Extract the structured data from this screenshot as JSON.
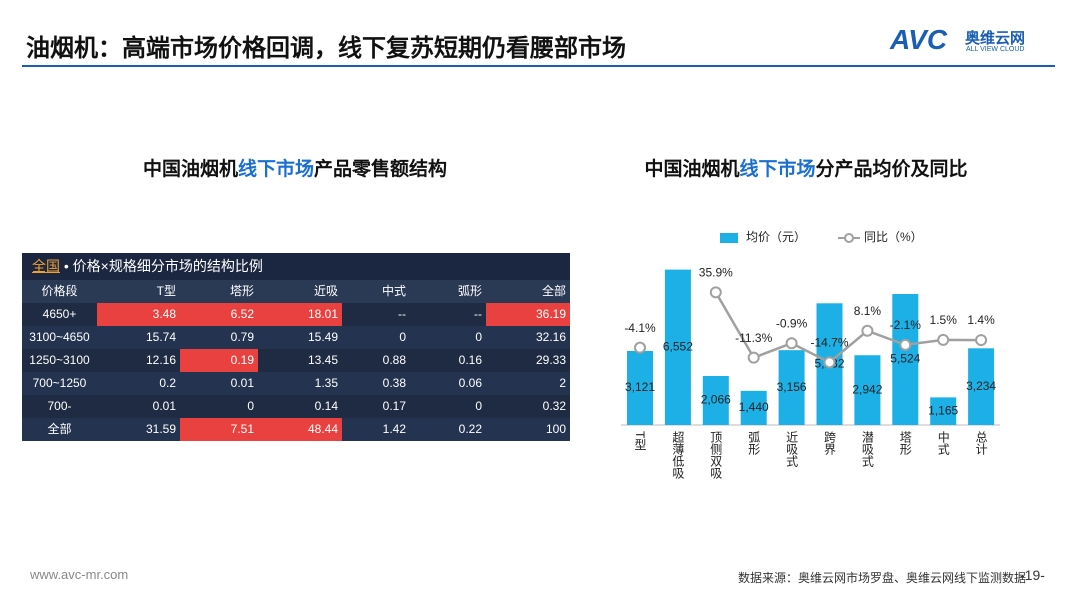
{
  "header": {
    "title": "油烟机：高端市场价格回调，线下复苏短期仍看腰部市场",
    "logo": "AVC",
    "logo_cn": "奥维云网",
    "logo_en": "ALL VIEW CLOUD"
  },
  "table": {
    "title_parts": [
      "中国油烟机",
      "线下市场",
      "产品零售额结构"
    ],
    "caption_region": "全国",
    "caption": "• 价格×规格细分市场的结构比例",
    "columns": [
      "价格段",
      "T型",
      "塔形",
      "近吸",
      "中式",
      "弧形",
      "全部"
    ],
    "rows": [
      [
        "4650+",
        "3.48",
        "6.52",
        "18.01",
        "--",
        "--",
        "36.19"
      ],
      [
        "3100~4650",
        "15.74",
        "0.79",
        "15.49",
        "0",
        "0",
        "32.16"
      ],
      [
        "1250~3100",
        "12.16",
        "0.19",
        "13.45",
        "0.88",
        "0.16",
        "29.33"
      ],
      [
        "700~1250",
        "0.2",
        "0.01",
        "1.35",
        "0.38",
        "0.06",
        "2"
      ],
      [
        "700-",
        "0.01",
        "0",
        "0.14",
        "0.17",
        "0",
        "0.32"
      ],
      [
        "全部",
        "31.59",
        "7.51",
        "48.44",
        "1.42",
        "0.22",
        "100"
      ]
    ],
    "highlight": [
      [
        0,
        1
      ],
      [
        0,
        2
      ],
      [
        0,
        3
      ],
      [
        0,
        6
      ],
      [
        2,
        2
      ],
      [
        5,
        2
      ],
      [
        5,
        3
      ]
    ],
    "highlight_color": "#e8413f"
  },
  "chart_data": {
    "type": "bar",
    "title_parts": [
      "中国油烟机",
      "线下市场",
      "分产品均价及同比"
    ],
    "categories": [
      "T型",
      "超薄低吸",
      "顶侧双吸",
      "弧形",
      "近吸式",
      "跨界",
      "潜吸式",
      "塔形",
      "中式",
      "总计"
    ],
    "series": [
      {
        "name": "均价（元）",
        "color": "#1cb0e6",
        "values": [
          3121,
          6552,
          2066,
          1440,
          3156,
          5132,
          2942,
          5524,
          1165,
          3234
        ],
        "value_labels": [
          "3,121",
          "6,552",
          "2,066",
          "1,440",
          "3,156",
          "5,132",
          "2,942",
          "5,524",
          "1,165",
          "3,234"
        ]
      },
      {
        "name": "同比（%）",
        "color": "#a0a0a0",
        "axis": "y2",
        "type": "line",
        "values": [
          -4.1,
          null,
          35.9,
          -11.3,
          -0.9,
          -14.7,
          8.1,
          -2.1,
          1.5,
          1.4
        ],
        "value_labels": [
          "-4.1%",
          null,
          "35.9%",
          "-11.3%",
          "-0.9%",
          "-14.7%",
          "8.1%",
          "-2.1%",
          "1.5%",
          "1.4%"
        ]
      }
    ],
    "ylim": [
      0,
      7000
    ],
    "y2lim": [
      -60,
      60
    ],
    "legend": "top"
  },
  "footer": {
    "url": "www.avc-mr.com",
    "source": "数据来源：奥维云网市场罗盘、奥维云网线下监测数据",
    "page": "-19-"
  }
}
